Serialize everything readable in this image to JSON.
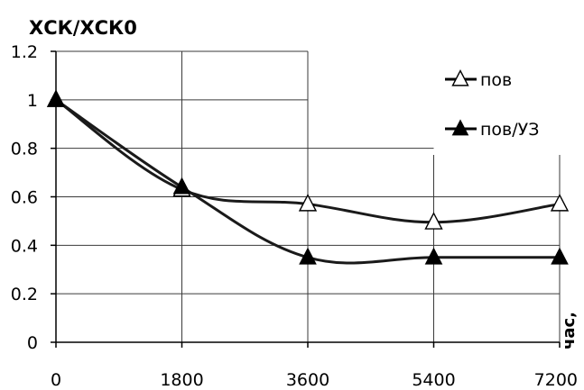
{
  "chart_data": {
    "type": "line",
    "ylabel": "ХСК/ХСК0",
    "xlabel": "час,",
    "x": [
      0,
      1800,
      3600,
      5400,
      7200
    ],
    "x_tick_labels": [
      "0",
      "1800",
      "3600",
      "5400",
      "7200"
    ],
    "y_tick_labels": [
      "0",
      "0.2",
      "0.4",
      "0.6",
      "0.8",
      "1",
      "1.2"
    ],
    "xlim": [
      0,
      7200
    ],
    "ylim": [
      0,
      1.2
    ],
    "grid": "vertical and horizontal (partial)",
    "legend_position": "right",
    "series": [
      {
        "name": "пов",
        "marker": "triangle-open",
        "values": [
          1.0,
          0.63,
          0.57,
          0.495,
          0.57
        ]
      },
      {
        "name": "пов/УЗ",
        "marker": "triangle-filled",
        "values": [
          1.0,
          0.64,
          0.35,
          0.35,
          0.35
        ]
      }
    ]
  }
}
